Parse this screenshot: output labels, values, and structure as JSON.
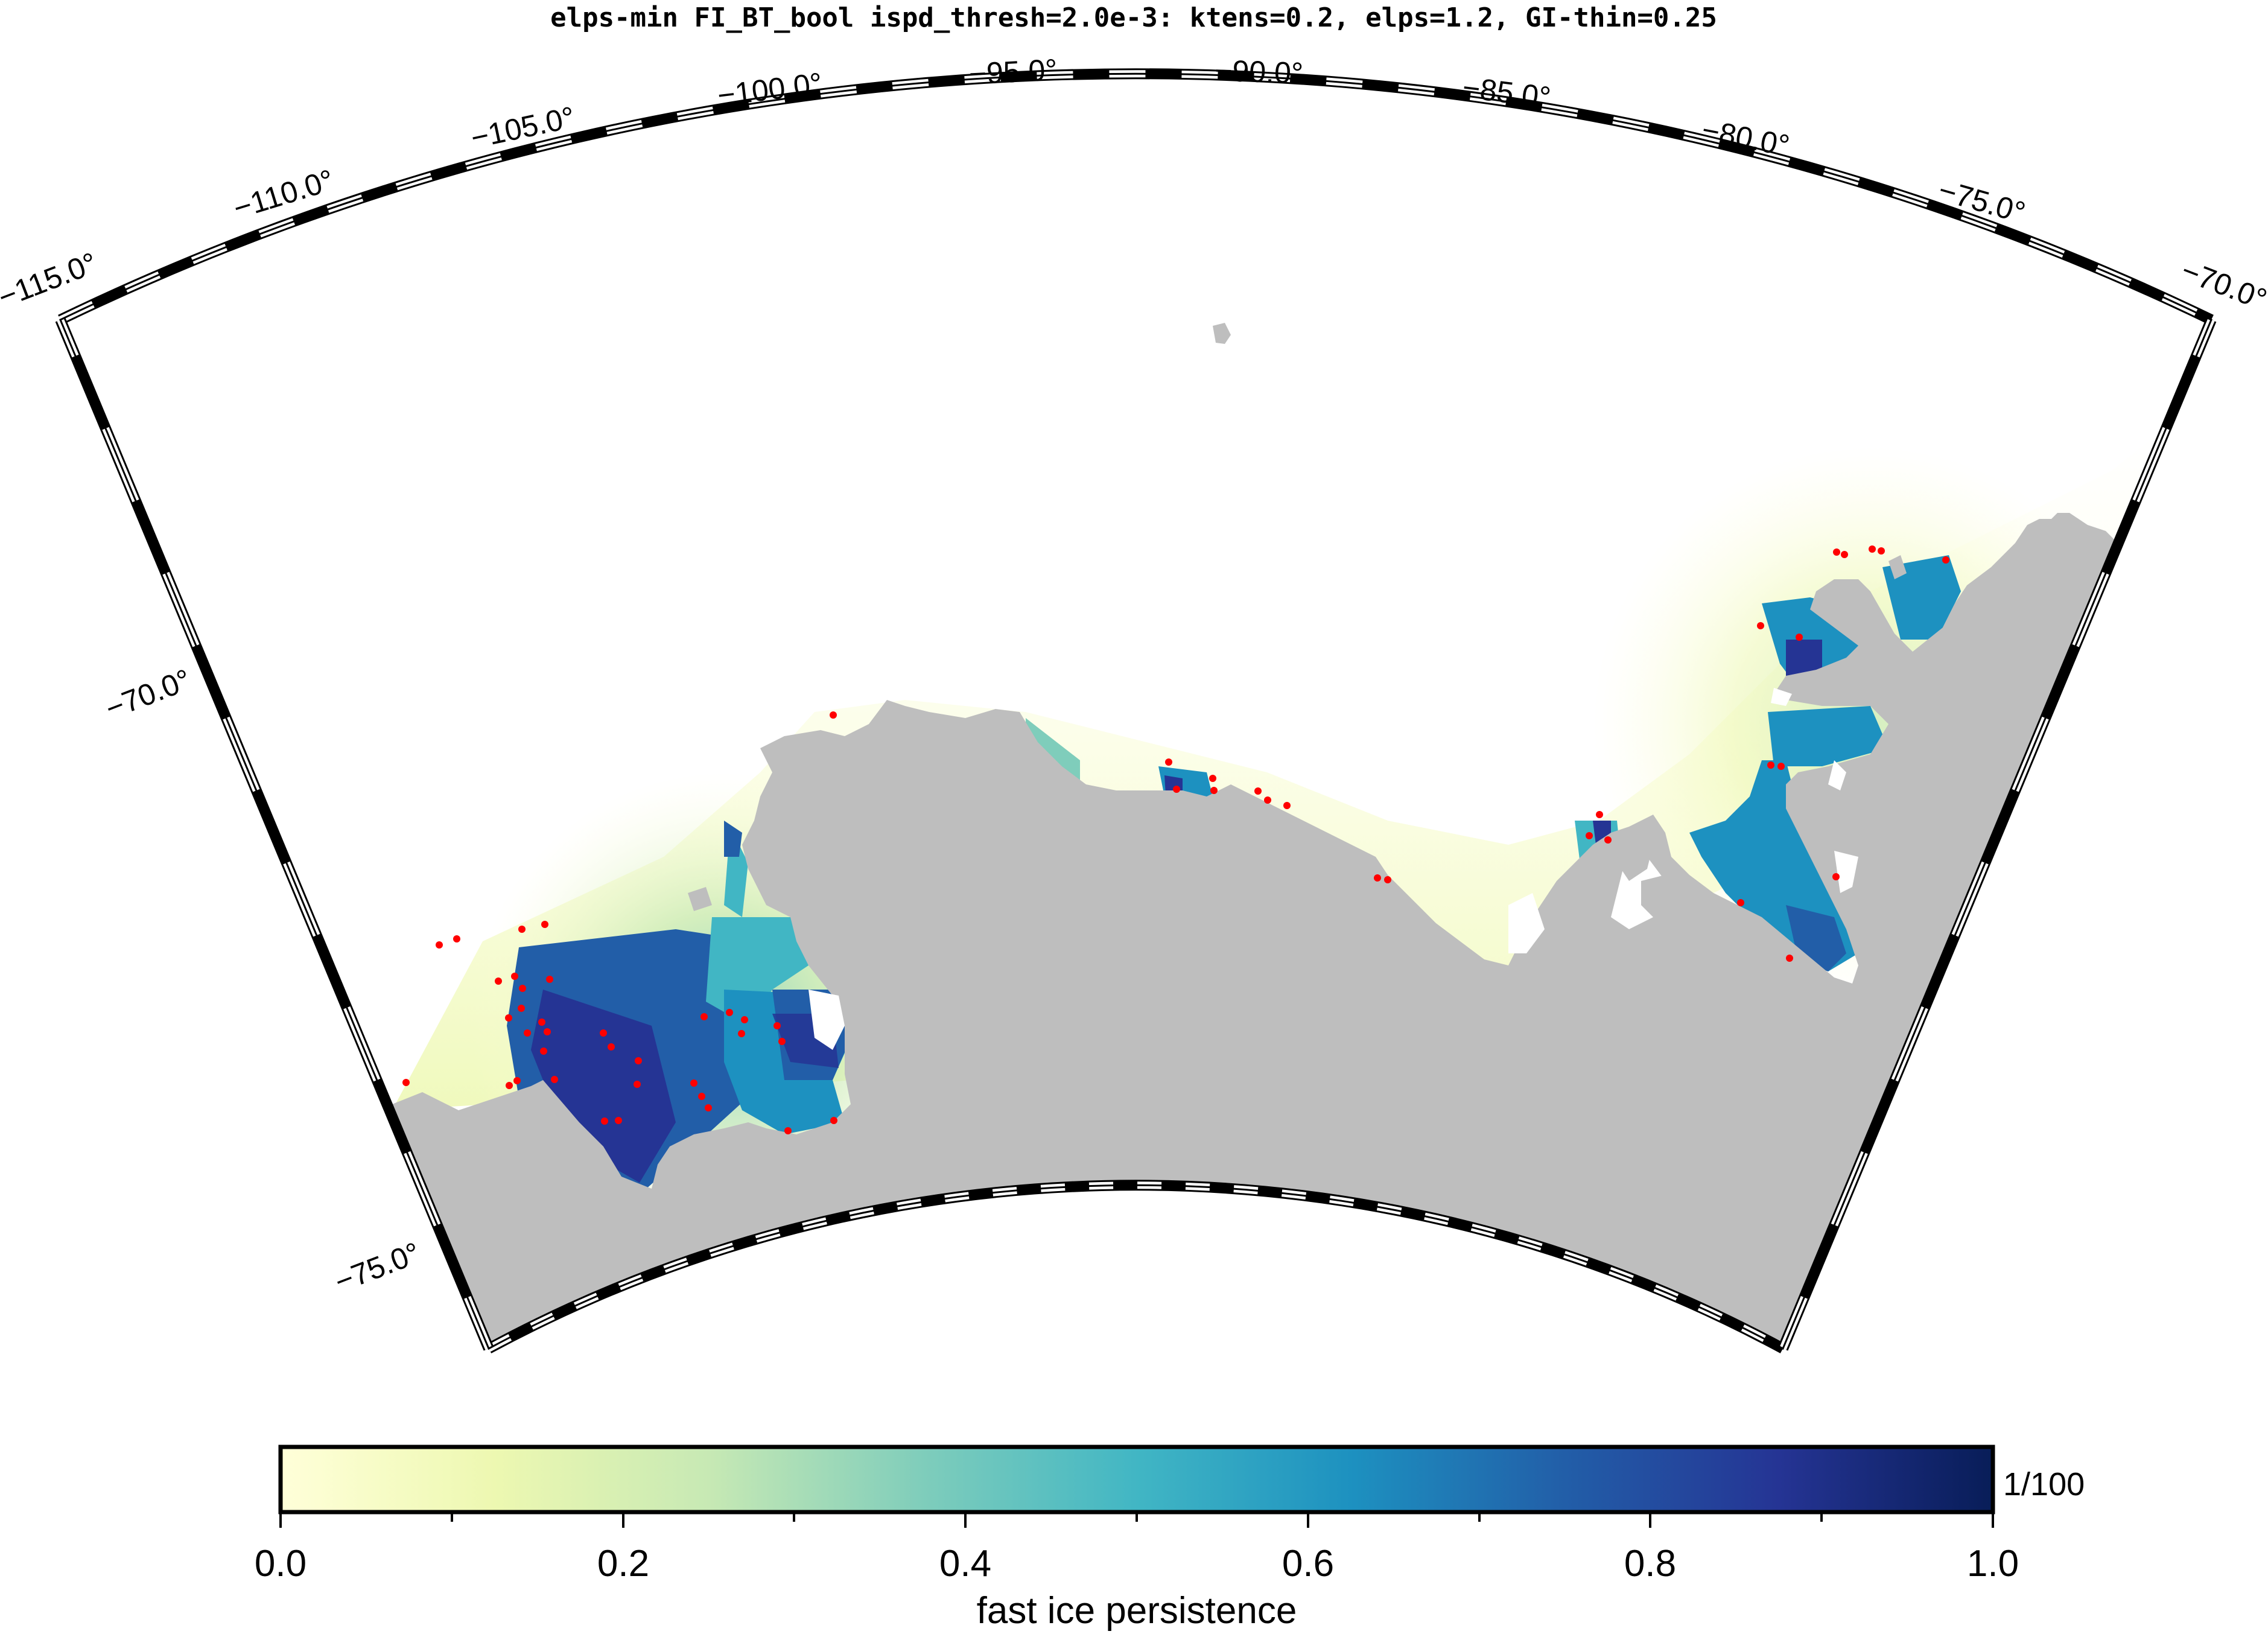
{
  "title": "elps-min FI_BT_bool ispd_thresh=2.0e-3: ktens=0.2, elps=1.2, GI-thin=0.25",
  "map": {
    "longitude_labels": [
      "−115.0°",
      "−110.0°",
      "−105.0°",
      "−100.0°",
      "−95.0°",
      "−90.0°",
      "−85.0°",
      "−80.0°",
      "−75.0°",
      "−70.0°"
    ],
    "latitude_labels": [
      "−70.0°",
      "−75.0°"
    ],
    "land_color": "#bebebe",
    "grounded_iceberg_color": "#ff0000"
  },
  "colorbar": {
    "label": "fast ice persistence",
    "unit": "1/100",
    "tick_labels": [
      "0.0",
      "0.2",
      "0.4",
      "0.6",
      "0.8",
      "1.0"
    ],
    "range": [
      0.0,
      1.0
    ],
    "colormap": [
      "#ffffd9",
      "#edf8b1",
      "#c7e9b4",
      "#7fcdbb",
      "#41b6c4",
      "#1d91c0",
      "#225ea8",
      "#253494",
      "#081d58"
    ]
  }
}
